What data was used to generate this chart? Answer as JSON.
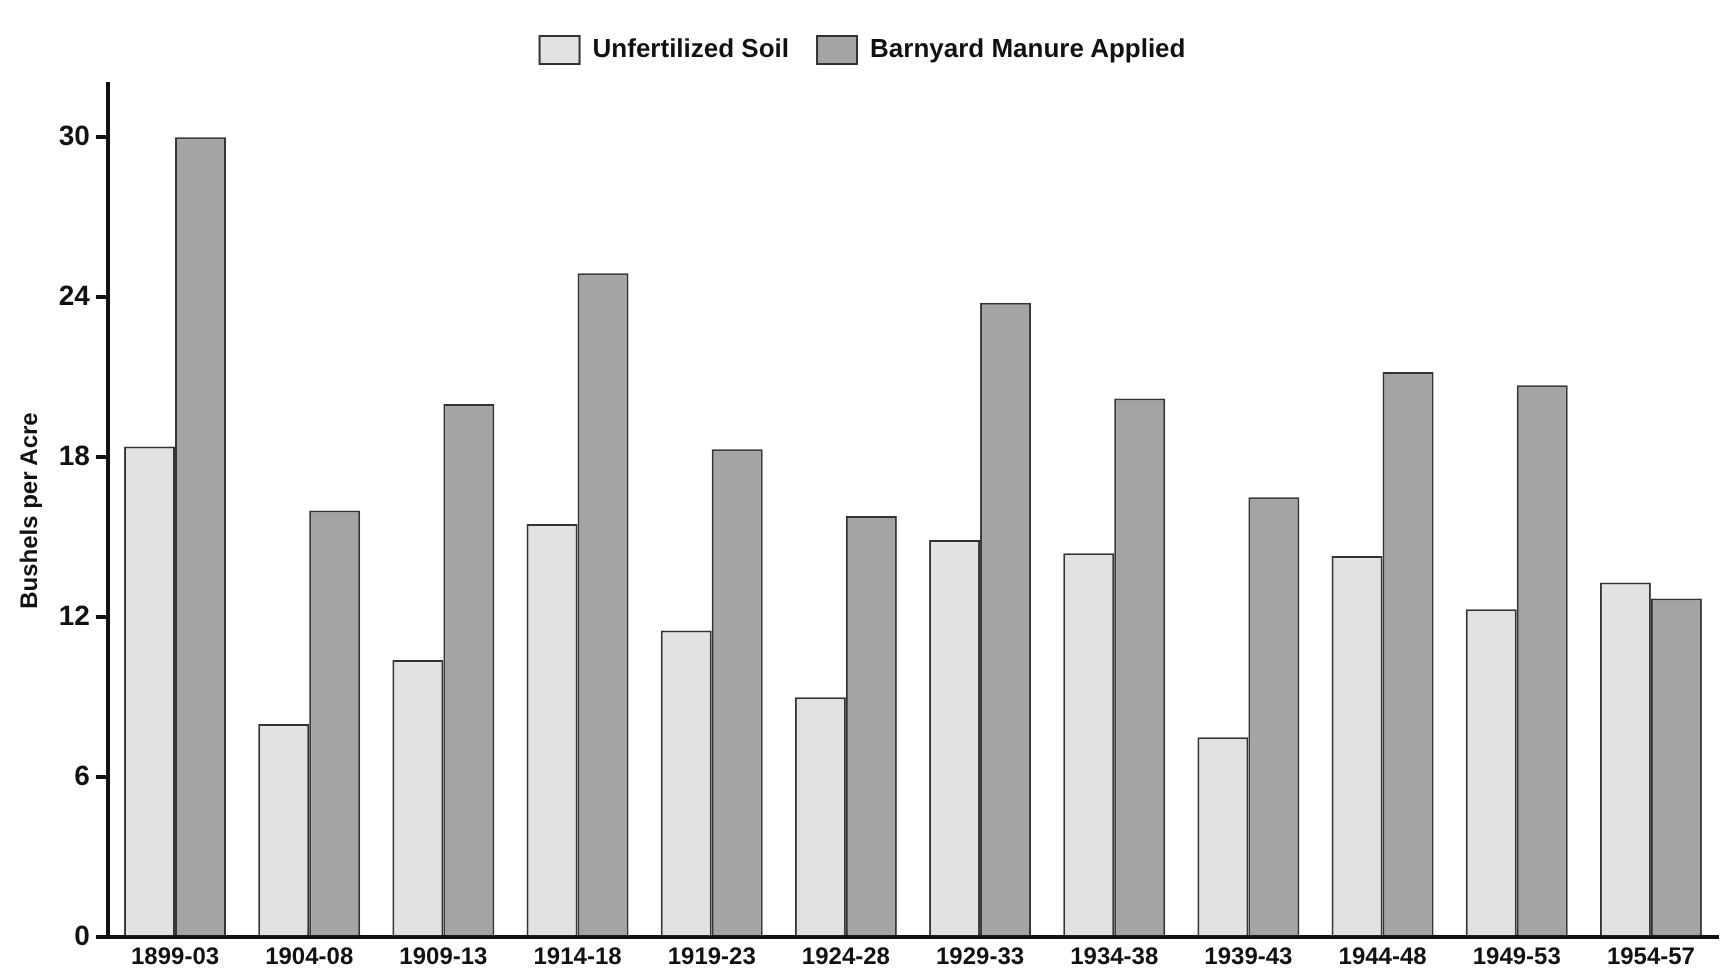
{
  "chart_data": {
    "type": "bar",
    "ylabel": "Bushels per Acre",
    "categories": [
      "1899-03",
      "1904-08",
      "1909-13",
      "1914-18",
      "1919-23",
      "1924-28",
      "1929-33",
      "1934-38",
      "1939-43",
      "1944-48",
      "1949-53",
      "1954-57"
    ],
    "series": [
      {
        "name": "Unfertilized Soil",
        "color": "#e2e2e2",
        "values": [
          18.4,
          8.0,
          10.4,
          15.5,
          11.5,
          9.0,
          14.9,
          14.4,
          7.5,
          14.3,
          12.3,
          13.3
        ]
      },
      {
        "name": "Barnyard Manure Applied",
        "color": "#a4a4a4",
        "values": [
          30,
          16.0,
          20,
          24.9,
          18.3,
          15.8,
          23.8,
          20.2,
          16.5,
          21.2,
          20.7,
          12.7
        ]
      }
    ],
    "ylim": [
      0,
      32
    ],
    "yticks": [
      0,
      6,
      12,
      18,
      24,
      30
    ],
    "grid": false,
    "legend": "top"
  }
}
